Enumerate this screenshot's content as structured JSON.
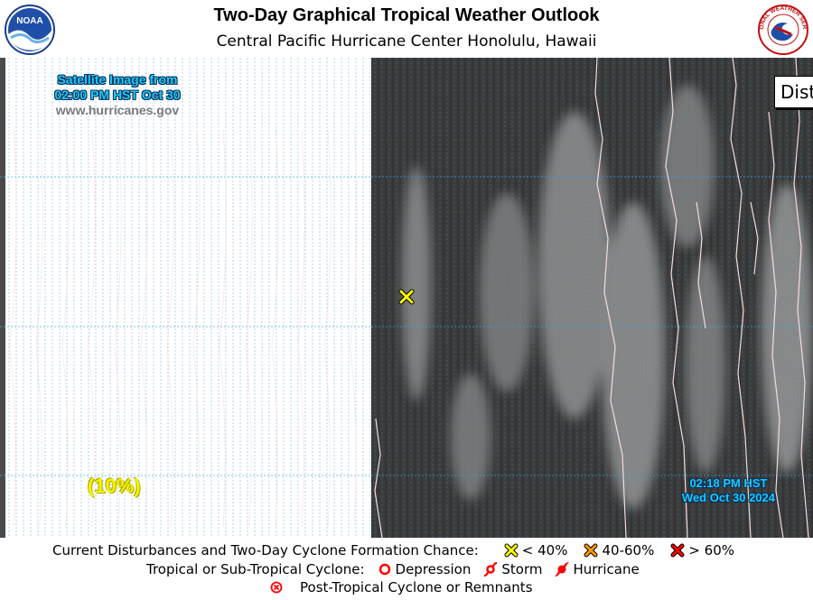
{
  "header": {
    "title": "Two-Day Graphical Tropical Weather Outlook",
    "subtitle": "Central Pacific Hurricane Center  Honolulu, Hawaii",
    "left_logo": "noaa-logo",
    "right_logo": "national-weather-service-logo",
    "left_logo_text": "NOAA",
    "right_logo_text": "NATIONAL WEATHER SERVICE"
  },
  "map": {
    "satellite_caption_line1": "Satellite Image from",
    "satellite_caption_line2": "02:00 PM HST Oct 30",
    "website": "www.hurricanes.gov",
    "formation_chance": "(10%)",
    "timestamp_line1": "02:18 PM HST",
    "timestamp_line2": "Wed Oct 30 2024",
    "cropped_label": "Dist",
    "disturbance_marker": "yellow-x-icon"
  },
  "legend": {
    "row1_label": "Current Disturbances and Two-Day Cyclone Formation Chance:",
    "low": "< 40%",
    "medium": "40-60%",
    "high": "> 60%",
    "row2_label": "Tropical or Sub-Tropical Cyclone:",
    "depression": "Depression",
    "storm": "Storm",
    "hurricane": "Hurricane",
    "row3_label": "Post-Tropical Cyclone or Remnants",
    "colors": {
      "low": "#ffff00",
      "medium": "#ff9900",
      "high": "#ff0000",
      "cyclone": "#ff0000"
    }
  }
}
